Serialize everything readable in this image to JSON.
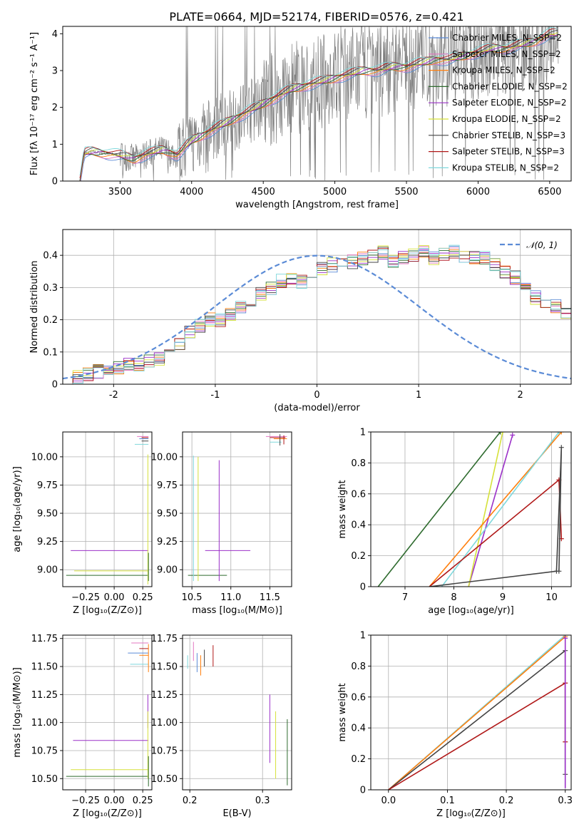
{
  "title": "PLATE=0664, MJD=52174, FIBERID=0576, z=0.421",
  "colors": {
    "chabrier_miles": "#5b8bd6",
    "salpeter_miles": "#e377c2",
    "kroupa_miles": "#ff7f0e",
    "chabrier_elodie": "#2e6b2e",
    "salpeter_elodie": "#9b30c8",
    "kroupa_elodie": "#d5e13a",
    "chabrier_stelib": "#444444",
    "salpeter_stelib": "#b01818",
    "kroupa_stelib": "#7fd8dc",
    "data": "#808080",
    "gauss": "#5b8bd6"
  },
  "chart_data": [
    {
      "id": "spectrum",
      "type": "line",
      "title": "PLATE=0664, MJD=52174, FIBERID=0576, z=0.421",
      "xlabel": "wavelength [Angstrom, rest frame]",
      "ylabel": "Flux [fλ 10⁻¹⁷ erg cm⁻² s⁻¹ A⁻¹]",
      "xlim": [
        3100,
        6650
      ],
      "ylim": [
        0,
        4.2
      ],
      "xticks": [
        3500,
        4000,
        4500,
        5000,
        5500,
        6000,
        6500
      ],
      "yticks": [
        0,
        1,
        2,
        3,
        4
      ],
      "legend_position": "top-right",
      "continuum": {
        "x": [
          3220,
          3250,
          3300,
          3400,
          3500,
          3600,
          3700,
          3800,
          3900,
          4000,
          4100,
          4200,
          4300,
          4400,
          4500,
          4600,
          4700,
          4800,
          4900,
          5000,
          5100,
          5200,
          5300,
          5400,
          5500,
          5600,
          5700,
          5800,
          5900,
          6000,
          6100,
          6200,
          6300,
          6400,
          6500
        ],
        "y": [
          0,
          0.75,
          0.8,
          0.75,
          0.7,
          0.6,
          0.75,
          0.85,
          0.7,
          1.1,
          1.3,
          1.5,
          1.7,
          1.9,
          2.1,
          2.3,
          2.5,
          2.6,
          2.7,
          2.8,
          2.9,
          3.0,
          3.0,
          3.1,
          3.1,
          3.2,
          3.3,
          3.3,
          3.4,
          3.5,
          3.6,
          3.6,
          3.7,
          3.8,
          4.0
        ]
      },
      "series": [
        {
          "name": "Chabrier MILES, N_SSP=2",
          "color": "#5b8bd6"
        },
        {
          "name": "Salpeter MILES, N_SSP=2",
          "color": "#e377c2"
        },
        {
          "name": "Kroupa MILES, N_SSP=2",
          "color": "#ff7f0e"
        },
        {
          "name": "Chabrier ELODIE, N_SSP=2",
          "color": "#2e6b2e"
        },
        {
          "name": "Salpeter ELODIE, N_SSP=2",
          "color": "#9b30c8"
        },
        {
          "name": "Kroupa ELODIE, N_SSP=2",
          "color": "#d5e13a"
        },
        {
          "name": "Chabrier STELIB, N_SSP=3",
          "color": "#444444"
        },
        {
          "name": "Salpeter STELIB, N_SSP=3",
          "color": "#b01818"
        },
        {
          "name": "Kroupa STELIB, N_SSP=2",
          "color": "#7fd8dc"
        }
      ]
    },
    {
      "id": "residuals",
      "type": "line",
      "xlabel": "(data-model)/error",
      "ylabel": "Normed distribution",
      "xlim": [
        -2.5,
        2.5
      ],
      "ylim": [
        0,
        0.48
      ],
      "xticks": [
        -2,
        -1,
        0,
        1,
        2
      ],
      "yticks": [
        0.0,
        0.1,
        0.2,
        0.3,
        0.4
      ],
      "grid": true,
      "legend_position": "top-right",
      "gauss_label": "𝒩(0, 1)",
      "bin_width": 0.1,
      "bin_start": -2.5,
      "hist": [
        0.02,
        0.02,
        0.03,
        0.04,
        0.04,
        0.05,
        0.06,
        0.06,
        0.07,
        0.08,
        0.12,
        0.12,
        0.16,
        0.18,
        0.2,
        0.2,
        0.22,
        0.24,
        0.26,
        0.28,
        0.3,
        0.32,
        0.33,
        0.32,
        0.34,
        0.36,
        0.37,
        0.38,
        0.38,
        0.39,
        0.4,
        0.41,
        0.38,
        0.39,
        0.4,
        0.41,
        0.39,
        0.4,
        0.41,
        0.4,
        0.39,
        0.39,
        0.37,
        0.35,
        0.33,
        0.3,
        0.27,
        0.25,
        0.24,
        0.22,
        0.2,
        0.18,
        0.17,
        0.16,
        0.14,
        0.13,
        0.11,
        0.1,
        0.08,
        0.07,
        0.05,
        0.05,
        0.04,
        0.04,
        0.03,
        0.03,
        0.03,
        0.02,
        0.02,
        0.02,
        0.02
      ]
    },
    {
      "id": "age_vs_Z",
      "type": "scatter",
      "xlabel": "Z [log₁₀(Z/Z⊙)]",
      "ylabel": "age  [log₁₀(age/yr)]",
      "xlim": [
        -0.45,
        0.33
      ],
      "ylim": [
        8.85,
        10.22
      ],
      "xticks": [
        -0.25,
        0.0,
        0.25
      ],
      "xtick_labels": [
        "−0.25",
        "0.00",
        "0.25"
      ],
      "yticks": [
        9.0,
        9.25,
        9.5,
        9.75,
        10.0
      ],
      "ytick_labels": [
        "9.00",
        "9.25",
        "9.50",
        "9.75",
        "10.00"
      ],
      "hlines": [
        {
          "y": 10.18,
          "x1": 0.2,
          "x2": 0.3,
          "color": "#e377c2"
        },
        {
          "y": 10.17,
          "x1": 0.24,
          "x2": 0.3,
          "color": "#b01818"
        },
        {
          "y": 10.16,
          "x1": 0.22,
          "x2": 0.3,
          "color": "#5b8bd6"
        },
        {
          "y": 10.14,
          "x1": 0.24,
          "x2": 0.3,
          "color": "#444444"
        },
        {
          "y": 10.11,
          "x1": 0.18,
          "x2": 0.3,
          "color": "#7fd8dc"
        },
        {
          "y": 9.17,
          "x1": -0.38,
          "x2": 0.3,
          "color": "#9b30c8"
        },
        {
          "y": 8.99,
          "x1": -0.35,
          "x2": 0.3,
          "color": "#d5e13a"
        },
        {
          "y": 8.95,
          "x1": -0.42,
          "x2": 0.3,
          "color": "#2e6b2e"
        }
      ],
      "vlines": [
        {
          "x": 0.295,
          "y1": 8.87,
          "y2": 10.02,
          "color": "#d5e13a"
        },
        {
          "x": 0.3,
          "y1": 8.9,
          "y2": 9.15,
          "color": "#2e6b2e"
        }
      ]
    },
    {
      "id": "age_vs_mass",
      "type": "scatter",
      "xlabel": "mass [log₁₀(M/M⊙)]",
      "xlim": [
        10.38,
        11.78
      ],
      "ylim": [
        8.85,
        10.22
      ],
      "xticks": [
        10.5,
        11.0,
        11.5
      ],
      "xtick_labels": [
        "10.5",
        "11.0",
        "11.5"
      ],
      "yticks": [
        9.0,
        9.25,
        9.5,
        9.75,
        10.0
      ],
      "ytick_labels": [
        "9.00",
        "9.25",
        "9.50",
        "9.75",
        "10.00"
      ],
      "hlines": [
        {
          "y": 9.17,
          "x1": 10.67,
          "x2": 11.25,
          "color": "#9b30c8"
        },
        {
          "y": 8.95,
          "x1": 10.45,
          "x2": 10.95,
          "color": "#2e6b2e"
        },
        {
          "y": 10.18,
          "x1": 11.45,
          "x2": 11.72,
          "color": "#e377c2"
        },
        {
          "y": 10.17,
          "x1": 11.5,
          "x2": 11.7,
          "color": "#b01818"
        },
        {
          "y": 10.16,
          "x1": 11.55,
          "x2": 11.72,
          "color": "#ff7f0e"
        },
        {
          "y": 10.13,
          "x1": 11.5,
          "x2": 11.65,
          "color": "#7fd8dc"
        }
      ],
      "vlines": [
        {
          "x": 10.85,
          "y1": 8.9,
          "y2": 9.97,
          "color": "#9b30c8"
        },
        {
          "x": 10.58,
          "y1": 8.9,
          "y2": 10.0,
          "color": "#d5e13a"
        },
        {
          "x": 10.52,
          "y1": 8.9,
          "y2": 10.01,
          "color": "#7fd8dc"
        },
        {
          "x": 11.63,
          "y1": 10.1,
          "y2": 10.2,
          "color": "#444444"
        },
        {
          "x": 11.68,
          "y1": 10.11,
          "y2": 10.19,
          "color": "#b01818"
        }
      ]
    },
    {
      "id": "massweight_vs_age",
      "type": "line",
      "xlabel": "age  [log₁₀(age/yr)]",
      "ylabel": "mass weight",
      "xlim": [
        6.3,
        10.4
      ],
      "ylim": [
        0,
        1
      ],
      "xticks": [
        7,
        8,
        9,
        10
      ],
      "yticks": [
        0.0,
        0.2,
        0.4,
        0.6,
        0.8,
        1.0
      ],
      "grid": true,
      "series": [
        {
          "name": "Chabrier ELODIE, N_SSP=2",
          "color": "#2e6b2e",
          "x": [
            6.45,
            8.95,
            8.95
          ],
          "y": [
            0,
            1.0,
            1.0
          ]
        },
        {
          "name": "Salpeter ELODIE, N_SSP=2",
          "color": "#9b30c8",
          "x": [
            8.3,
            9.2
          ],
          "y": [
            0,
            0.98
          ]
        },
        {
          "name": "Kroupa ELODIE, N_SSP=2",
          "color": "#d5e13a",
          "x": [
            8.3,
            9.0
          ],
          "y": [
            0,
            1.0
          ]
        },
        {
          "name": "Kroupa MILES, N_SSP=2",
          "color": "#ff7f0e",
          "x": [
            7.5,
            10.2
          ],
          "y": [
            0,
            1.0
          ]
        },
        {
          "name": "Kroupa STELIB, N_SSP=2",
          "color": "#7fd8dc",
          "x": [
            7.75,
            10.15
          ],
          "y": [
            0,
            1.0
          ]
        },
        {
          "name": "Salpeter STELIB, N_SSP=3",
          "color": "#b01818",
          "x": [
            7.5,
            10.15,
            10.2
          ],
          "y": [
            0,
            0.69,
            0.31
          ]
        },
        {
          "name": "Chabrier STELIB, N_SSP=3",
          "color": "#444444",
          "x": [
            7.5,
            10.1,
            10.2,
            10.15
          ],
          "y": [
            0,
            0.1,
            0.9,
            0.1
          ]
        }
      ]
    },
    {
      "id": "mass_vs_Z",
      "type": "scatter",
      "xlabel": "Z [log₁₀(Z/Z⊙)]",
      "ylabel": "mass [log₁₀(M/M⊙)]",
      "xlim": [
        -0.45,
        0.33
      ],
      "ylim": [
        10.4,
        11.78
      ],
      "xticks": [
        -0.25,
        0.0,
        0.25
      ],
      "xtick_labels": [
        "−0.25",
        "0.00",
        "0.25"
      ],
      "yticks": [
        10.5,
        10.75,
        11.0,
        11.25,
        11.5,
        11.75
      ],
      "ytick_labels": [
        "10.50",
        "10.75",
        "11.00",
        "11.25",
        "11.50",
        "11.75"
      ],
      "hlines": [
        {
          "y": 11.71,
          "x1": 0.15,
          "x2": 0.3,
          "color": "#e377c2"
        },
        {
          "y": 11.66,
          "x1": 0.22,
          "x2": 0.3,
          "color": "#b01818"
        },
        {
          "y": 11.62,
          "x1": 0.12,
          "x2": 0.3,
          "color": "#5b8bd6"
        },
        {
          "y": 11.6,
          "x1": 0.22,
          "x2": 0.3,
          "color": "#ff7f0e"
        },
        {
          "y": 11.52,
          "x1": 0.14,
          "x2": 0.3,
          "color": "#7fd8dc"
        },
        {
          "y": 10.84,
          "x1": -0.36,
          "x2": 0.3,
          "color": "#9b30c8"
        },
        {
          "y": 10.58,
          "x1": -0.38,
          "x2": 0.3,
          "color": "#d5e13a"
        },
        {
          "y": 10.52,
          "x1": -0.42,
          "x2": 0.3,
          "color": "#2e6b2e"
        }
      ],
      "vlines": [
        {
          "x": 0.295,
          "y1": 10.95,
          "y2": 11.25,
          "color": "#9b30c8"
        },
        {
          "x": 0.295,
          "y1": 10.5,
          "y2": 11.1,
          "color": "#d5e13a"
        },
        {
          "x": 0.3,
          "y1": 10.43,
          "y2": 10.7,
          "color": "#2e6b2e"
        },
        {
          "x": 0.3,
          "y1": 11.45,
          "y2": 11.7,
          "color": "#ff7f0e"
        }
      ]
    },
    {
      "id": "mass_vs_ebv",
      "type": "scatter",
      "xlabel": "E(B-V)",
      "xlim": [
        0.19,
        0.34
      ],
      "ylim": [
        10.4,
        11.78
      ],
      "xticks": [
        0.2,
        0.3
      ],
      "xtick_labels": [
        "0.2",
        "0.3"
      ],
      "yticks": [
        10.5,
        10.75,
        11.0,
        11.25,
        11.5,
        11.75
      ],
      "ytick_labels": [
        "10.50",
        "10.75",
        "11.00",
        "11.25",
        "11.50",
        "11.75"
      ],
      "vlines": [
        {
          "x": 0.197,
          "y1": 11.48,
          "y2": 11.6,
          "color": "#7fd8dc"
        },
        {
          "x": 0.205,
          "y1": 11.55,
          "y2": 11.72,
          "color": "#e377c2"
        },
        {
          "x": 0.21,
          "y1": 11.45,
          "y2": 11.62,
          "color": "#5b8bd6"
        },
        {
          "x": 0.215,
          "y1": 11.42,
          "y2": 11.6,
          "color": "#ff7f0e"
        },
        {
          "x": 0.22,
          "y1": 11.5,
          "y2": 11.65,
          "color": "#444444"
        },
        {
          "x": 0.232,
          "y1": 11.5,
          "y2": 11.69,
          "color": "#b01818"
        },
        {
          "x": 0.31,
          "y1": 10.64,
          "y2": 11.25,
          "color": "#9b30c8"
        },
        {
          "x": 0.318,
          "y1": 10.5,
          "y2": 11.1,
          "color": "#d5e13a"
        },
        {
          "x": 0.334,
          "y1": 10.44,
          "y2": 11.03,
          "color": "#2e6b2e"
        }
      ]
    },
    {
      "id": "massweight_vs_Z",
      "type": "line",
      "xlabel": "Z [log₁₀(Z/Z⊙)]",
      "ylabel": "mass weight",
      "xlim": [
        -0.03,
        0.31
      ],
      "ylim": [
        0,
        1
      ],
      "xticks": [
        0.0,
        0.1,
        0.2,
        0.3
      ],
      "xtick_labels": [
        "0.0",
        "0.1",
        "0.2",
        "0.3"
      ],
      "yticks": [
        0.0,
        0.2,
        0.4,
        0.6,
        0.8,
        1.0
      ],
      "grid": true,
      "series": [
        {
          "name": "Kroupa STELIB, N_SSP=2",
          "color": "#7fd8dc",
          "x": [
            0.0,
            0.3
          ],
          "y": [
            0,
            1.0
          ]
        },
        {
          "name": "Kroupa MILES, N_SSP=2",
          "color": "#ff7f0e",
          "x": [
            0.0,
            0.3
          ],
          "y": [
            0,
            0.99
          ]
        },
        {
          "name": "Chabrier STELIB, N_SSP=3",
          "color": "#444444",
          "x": [
            0.0,
            0.3,
            0.3
          ],
          "y": [
            0,
            0.9,
            0.1
          ]
        },
        {
          "name": "Salpeter STELIB, N_SSP=3",
          "color": "#b01818",
          "x": [
            0.0,
            0.3,
            0.3
          ],
          "y": [
            0,
            0.69,
            0.31
          ]
        },
        {
          "name": "Salpeter ELODIE, N_SSP=2",
          "color": "#9b30c8",
          "x": [
            0.3,
            0.3
          ],
          "y": [
            0.01,
            0.98
          ]
        }
      ]
    }
  ]
}
